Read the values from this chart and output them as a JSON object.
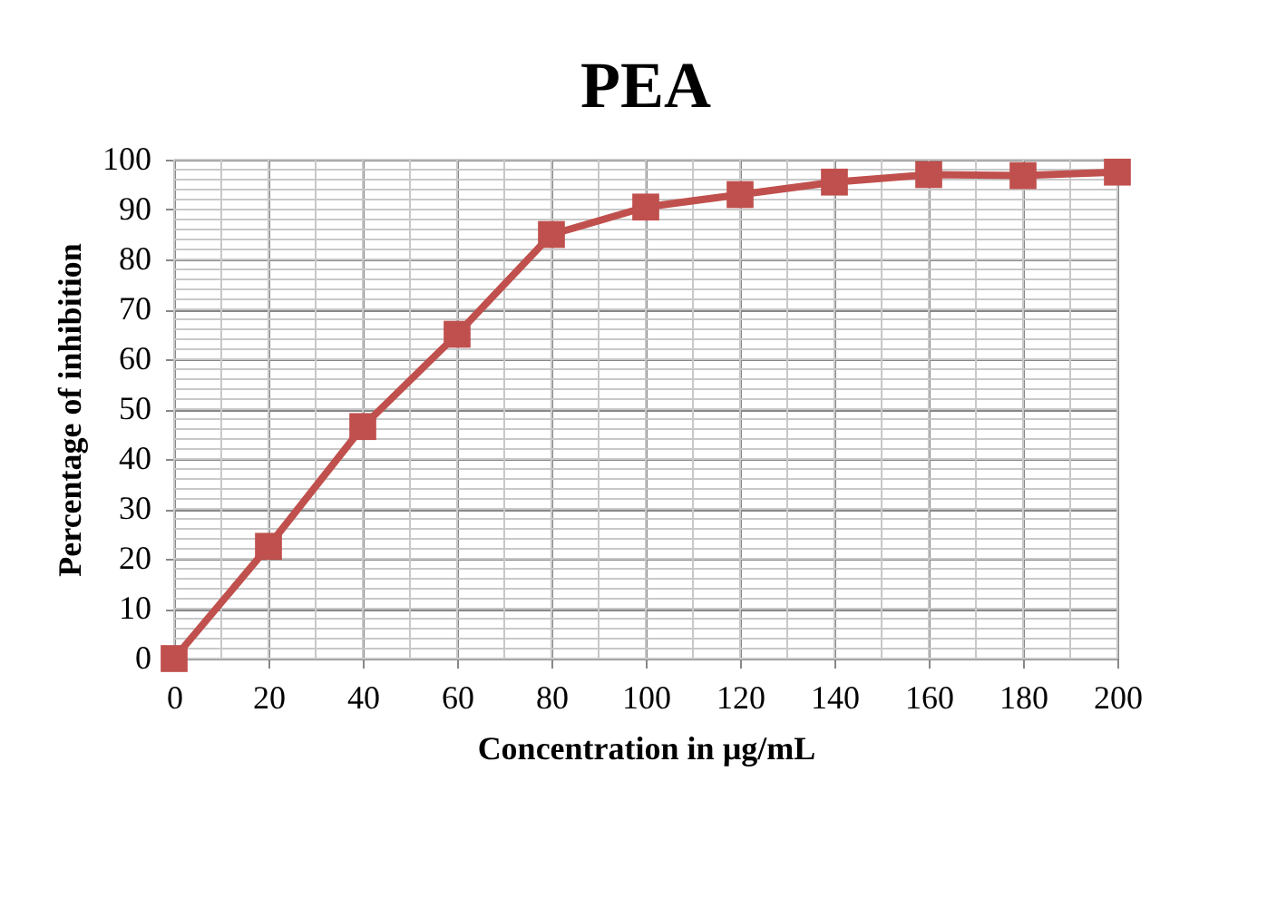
{
  "chart_data": {
    "type": "line",
    "title": "PEA",
    "xlabel": "Concentration in µg/mL",
    "ylabel": "Percentage of inhibition",
    "x": [
      0,
      20,
      40,
      60,
      80,
      100,
      120,
      140,
      160,
      180,
      200
    ],
    "series": [
      {
        "color": "#c0504d",
        "values": [
          0,
          22.5,
          46.5,
          65,
          85,
          90.5,
          93,
          95.5,
          97,
          96.8,
          97.5
        ]
      }
    ],
    "xlim": [
      0,
      200
    ],
    "xticks": [
      0,
      20,
      40,
      60,
      80,
      100,
      120,
      140,
      160,
      180,
      200
    ],
    "ylim": [
      0,
      100
    ],
    "yticks": [
      0,
      10,
      20,
      30,
      40,
      50,
      60,
      70,
      80,
      90,
      100
    ],
    "grid": true,
    "marker": "square",
    "line_style": "solid"
  }
}
